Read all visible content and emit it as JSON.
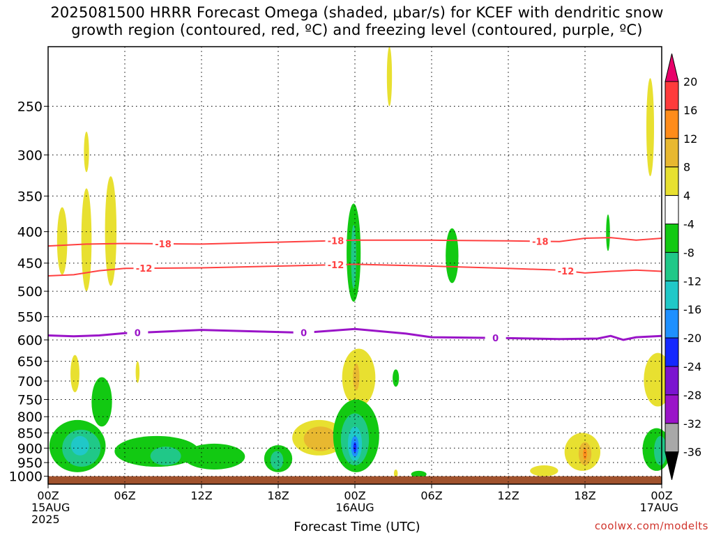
{
  "title": {
    "line1": "2025081500 HRRR Forecast Omega (shaded, µbar/s) for KCEF with dendritic snow",
    "line2": "growth region (contoured, red, ºC) and freezing level (contoured, purple, ºC)"
  },
  "credit": "coolwx.com/modelts",
  "chart_data": {
    "type": "heatmap",
    "title": "2025081500 HRRR Forecast Omega (shaded, µbar/s) for KCEF with dendritic snow growth region (contoured, red, ºC) and freezing level (contoured, purple, ºC)",
    "xlabel": "Forecast Time (UTC)",
    "ylabel": "",
    "x_range_hours": [
      0,
      48
    ],
    "x_ticks": [
      {
        "hour": 0,
        "lines": [
          "00Z",
          "15AUG",
          "2025"
        ]
      },
      {
        "hour": 6,
        "lines": [
          "06Z"
        ]
      },
      {
        "hour": 12,
        "lines": [
          "12Z"
        ]
      },
      {
        "hour": 18,
        "lines": [
          "18Z"
        ]
      },
      {
        "hour": 24,
        "lines": [
          "00Z",
          "16AUG"
        ]
      },
      {
        "hour": 30,
        "lines": [
          "06Z"
        ]
      },
      {
        "hour": 36,
        "lines": [
          "12Z"
        ]
      },
      {
        "hour": 42,
        "lines": [
          "18Z"
        ]
      },
      {
        "hour": 48,
        "lines": [
          "00Z",
          "17AUG"
        ]
      }
    ],
    "y_scale": "log",
    "y_range_hPa": [
      1030,
      200
    ],
    "y_ticks": [
      250,
      300,
      350,
      400,
      450,
      500,
      550,
      600,
      650,
      700,
      750,
      800,
      850,
      900,
      950,
      1000
    ],
    "grid": true,
    "colorbar": {
      "labels": [
        "20",
        "16",
        "12",
        "8",
        "4",
        "-4",
        "-8",
        "-12",
        "-16",
        "-20",
        "-24",
        "-28",
        "-32",
        "-36"
      ],
      "colors": [
        "#e8006a",
        "#ff3b3b",
        "#ff8c1a",
        "#e8b830",
        "#e8e030",
        "#ffffff",
        "#12c912",
        "#20c888",
        "#20c8c8",
        "#1e90ff",
        "#1428ff",
        "#7b14d0",
        "#9a14c8",
        "#a8a8a8",
        "#000000"
      ]
    },
    "contours": [
      {
        "value": -18,
        "color": "#ff4040",
        "label": "-18",
        "points": [
          [
            0,
            422
          ],
          [
            3,
            419
          ],
          [
            6,
            418
          ],
          [
            12,
            419
          ],
          [
            18,
            416
          ],
          [
            24,
            413
          ],
          [
            30,
            413
          ],
          [
            36,
            414
          ],
          [
            40,
            415
          ],
          [
            42,
            410
          ],
          [
            44,
            409
          ],
          [
            46,
            413
          ],
          [
            48,
            410
          ]
        ],
        "label_hours": [
          9,
          22.5,
          38.5
        ]
      },
      {
        "value": -12,
        "color": "#ff4040",
        "label": "-12",
        "points": [
          [
            0,
            472
          ],
          [
            2,
            470
          ],
          [
            4,
            463
          ],
          [
            6,
            459
          ],
          [
            12,
            458
          ],
          [
            18,
            455
          ],
          [
            24,
            452
          ],
          [
            30,
            455
          ],
          [
            36,
            459
          ],
          [
            40,
            462
          ],
          [
            42,
            467
          ],
          [
            44,
            464
          ],
          [
            46,
            462
          ],
          [
            48,
            464
          ]
        ],
        "label_hours": [
          7.5,
          22.5,
          40.5
        ]
      },
      {
        "value": 0,
        "color": "#9a14c8",
        "label": "0",
        "points": [
          [
            0,
            590
          ],
          [
            2,
            592
          ],
          [
            4,
            590
          ],
          [
            6,
            585
          ],
          [
            8,
            583
          ],
          [
            12,
            578
          ],
          [
            16,
            581
          ],
          [
            20,
            584
          ],
          [
            24,
            576
          ],
          [
            28,
            586
          ],
          [
            30,
            594
          ],
          [
            36,
            596
          ],
          [
            40,
            598
          ],
          [
            43,
            597
          ],
          [
            44,
            591
          ],
          [
            45,
            600
          ],
          [
            46,
            594
          ],
          [
            48,
            591
          ]
        ],
        "label_hours": [
          7,
          20,
          35
        ]
      }
    ],
    "shaded_regions": [
      {
        "value": 4,
        "color": "#e8e030",
        "center": [
          1.1,
          415
        ],
        "hours_halfwidth": 0.4,
        "hpa_range": [
          365,
          470
        ]
      },
      {
        "value": 4,
        "color": "#e8e030",
        "center": [
          3.0,
          405
        ],
        "hours_halfwidth": 0.4,
        "hpa_range": [
          340,
          500
        ]
      },
      {
        "value": 4,
        "color": "#e8e030",
        "center": [
          3.0,
          292
        ],
        "hours_halfwidth": 0.2,
        "hpa_range": [
          275,
          320
        ]
      },
      {
        "value": 4,
        "color": "#e8e030",
        "center": [
          4.9,
          405
        ],
        "hours_halfwidth": 0.45,
        "hpa_range": [
          325,
          490
        ]
      },
      {
        "value": 4,
        "color": "#e8e030",
        "center": [
          26.7,
          210
        ],
        "hours_halfwidth": 0.2,
        "hpa_range": [
          200,
          250
        ]
      },
      {
        "value": 4,
        "color": "#e8e030",
        "center": [
          47.1,
          270
        ],
        "hours_halfwidth": 0.3,
        "hpa_range": [
          225,
          325
        ]
      },
      {
        "value": 4,
        "color": "#e8e030",
        "center": [
          2.1,
          685
        ],
        "hours_halfwidth": 0.35,
        "hpa_range": [
          635,
          730
        ]
      },
      {
        "value": 4,
        "color": "#e8e030",
        "center": [
          7.0,
          680
        ],
        "hours_halfwidth": 0.15,
        "hpa_range": [
          650,
          705
        ]
      },
      {
        "value": 4,
        "color": "#e8e030",
        "center": [
          47.7,
          705
        ],
        "hours_halfwidth": 1.1,
        "hpa_range": [
          630,
          770
        ]
      },
      {
        "value": 4,
        "color": "#e8e030",
        "center": [
          41.8,
          930
        ],
        "hours_halfwidth": 1.4,
        "hpa_range": [
          850,
          980
        ]
      },
      {
        "value": 4,
        "color": "#e8e030",
        "center": [
          38.8,
          985
        ],
        "hours_halfwidth": 1.1,
        "hpa_range": [
          960,
          1000
        ]
      },
      {
        "value": 4,
        "color": "#e8e030",
        "center": [
          24.3,
          690
        ],
        "hours_halfwidth": 1.3,
        "hpa_range": [
          620,
          770
        ]
      },
      {
        "value": 4,
        "color": "#e8e030",
        "center": [
          21.2,
          862
        ],
        "hours_halfwidth": 2.1,
        "hpa_range": [
          810,
          925
        ]
      },
      {
        "value": 4,
        "color": "#e8e030",
        "center": [
          27.2,
          992
        ],
        "hours_halfwidth": 0.15,
        "hpa_range": [
          975,
          1005
        ]
      },
      {
        "value": 8,
        "color": "#e8b830",
        "center": [
          24.1,
          690
        ],
        "hours_halfwidth": 0.25,
        "hpa_range": [
          655,
          725
        ]
      },
      {
        "value": 8,
        "color": "#e8b830",
        "center": [
          21.3,
          870
        ],
        "hours_halfwidth": 1.3,
        "hpa_range": [
          830,
          910
        ]
      },
      {
        "value": 8,
        "color": "#e8b830",
        "center": [
          42.0,
          920
        ],
        "hours_halfwidth": 0.5,
        "hpa_range": [
          880,
          960
        ]
      },
      {
        "value": 12,
        "color": "#ff8c1a",
        "center": [
          42.0,
          918
        ],
        "hours_halfwidth": 0.15,
        "hpa_range": [
          900,
          940
        ]
      },
      {
        "value": -4,
        "color": "#12c912",
        "center": [
          23.9,
          440
        ],
        "hours_halfwidth": 0.55,
        "hpa_range": [
          360,
          520
        ]
      },
      {
        "value": -4,
        "color": "#12c912",
        "center": [
          31.6,
          440
        ],
        "hours_halfwidth": 0.5,
        "hpa_range": [
          395,
          485
        ]
      },
      {
        "value": -4,
        "color": "#12c912",
        "center": [
          43.8,
          400
        ],
        "hours_halfwidth": 0.15,
        "hpa_range": [
          375,
          430
        ]
      },
      {
        "value": -4,
        "color": "#12c912",
        "center": [
          27.2,
          690
        ],
        "hours_halfwidth": 0.25,
        "hpa_range": [
          670,
          715
        ]
      },
      {
        "value": -4,
        "color": "#12c912",
        "center": [
          29.0,
          992
        ],
        "hours_halfwidth": 0.6,
        "hpa_range": [
          980,
          1005
        ]
      },
      {
        "value": -4,
        "color": "#12c912",
        "center": [
          2.3,
          900
        ],
        "hours_halfwidth": 2.2,
        "hpa_range": [
          810,
          985
        ]
      },
      {
        "value": -4,
        "color": "#12c912",
        "center": [
          4.2,
          745
        ],
        "hours_halfwidth": 0.8,
        "hpa_range": [
          690,
          830
        ]
      },
      {
        "value": -4,
        "color": "#12c912",
        "center": [
          8.5,
          910
        ],
        "hours_halfwidth": 3.3,
        "hpa_range": [
          860,
          965
        ]
      },
      {
        "value": -4,
        "color": "#12c912",
        "center": [
          13.0,
          925
        ],
        "hours_halfwidth": 2.4,
        "hpa_range": [
          885,
          975
        ]
      },
      {
        "value": -4,
        "color": "#12c912",
        "center": [
          18.0,
          940
        ],
        "hours_halfwidth": 1.1,
        "hpa_range": [
          890,
          985
        ]
      },
      {
        "value": -4,
        "color": "#12c912",
        "center": [
          24.1,
          860
        ],
        "hours_halfwidth": 1.8,
        "hpa_range": [
          750,
          985
        ]
      },
      {
        "value": -4,
        "color": "#12c912",
        "center": [
          47.6,
          900
        ],
        "hours_halfwidth": 1.1,
        "hpa_range": [
          835,
          980
        ]
      },
      {
        "value": -8,
        "color": "#20c888",
        "center": [
          23.9,
          440
        ],
        "hours_halfwidth": 0.2,
        "hpa_range": [
          390,
          495
        ]
      },
      {
        "value": -8,
        "color": "#20c888",
        "center": [
          2.6,
          895
        ],
        "hours_halfwidth": 1.5,
        "hpa_range": [
          840,
          965
        ]
      },
      {
        "value": -8,
        "color": "#20c888",
        "center": [
          24.0,
          870
        ],
        "hours_halfwidth": 1.1,
        "hpa_range": [
          790,
          960
        ]
      },
      {
        "value": -8,
        "color": "#20c888",
        "center": [
          17.9,
          945
        ],
        "hours_halfwidth": 0.5,
        "hpa_range": [
          910,
          975
        ]
      },
      {
        "value": -8,
        "color": "#20c888",
        "center": [
          9.2,
          930
        ],
        "hours_halfwidth": 1.2,
        "hpa_range": [
          895,
          960
        ]
      },
      {
        "value": -8,
        "color": "#20c888",
        "center": [
          47.9,
          905
        ],
        "hours_halfwidth": 0.5,
        "hpa_range": [
          860,
          960
        ]
      },
      {
        "value": -12,
        "color": "#20c8c8",
        "center": [
          24.0,
          890
        ],
        "hours_halfwidth": 0.55,
        "hpa_range": [
          830,
          945
        ]
      },
      {
        "value": -12,
        "color": "#20c8c8",
        "center": [
          2.5,
          890
        ],
        "hours_halfwidth": 0.7,
        "hpa_range": [
          860,
          925
        ]
      },
      {
        "value": -16,
        "color": "#1e90ff",
        "center": [
          24.0,
          895
        ],
        "hours_halfwidth": 0.3,
        "hpa_range": [
          860,
          930
        ]
      },
      {
        "value": -20,
        "color": "#1428ff",
        "center": [
          24.0,
          898
        ],
        "hours_halfwidth": 0.12,
        "hpa_range": [
          880,
          915
        ]
      }
    ],
    "surface_band": {
      "color": "#a0522d",
      "hpa_range": [
        1000,
        1030
      ]
    }
  }
}
